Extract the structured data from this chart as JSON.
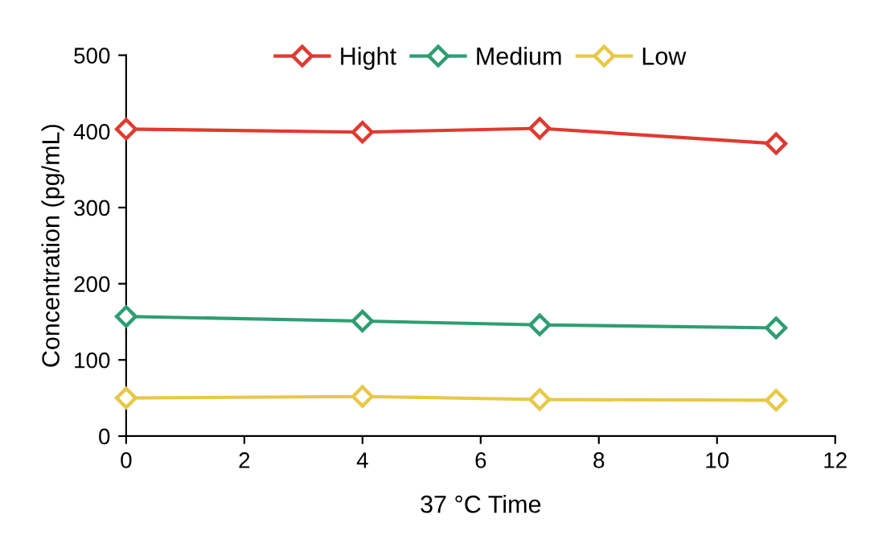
{
  "chart_data": {
    "type": "line",
    "xlabel": "37 °C Time",
    "ylabel": "Concentration (pg/mL)",
    "x": [
      0,
      4,
      7,
      11
    ],
    "series": [
      {
        "name": "Hight",
        "color": "#e03a30",
        "values": [
          403,
          399,
          404,
          384
        ]
      },
      {
        "name": "Medium",
        "color": "#2e9e72",
        "values": [
          157,
          151,
          146,
          142
        ]
      },
      {
        "name": "Low",
        "color": "#e8c848",
        "values": [
          50,
          52,
          48,
          47
        ]
      }
    ],
    "xlim": [
      0,
      12
    ],
    "xticks": [
      0,
      2,
      4,
      6,
      8,
      10,
      12
    ],
    "ylim": [
      0,
      500
    ],
    "yticks": [
      0,
      100,
      200,
      300,
      400,
      500
    ],
    "grid": false,
    "legend": "top",
    "marker": "diamond",
    "line_style": "solid"
  }
}
